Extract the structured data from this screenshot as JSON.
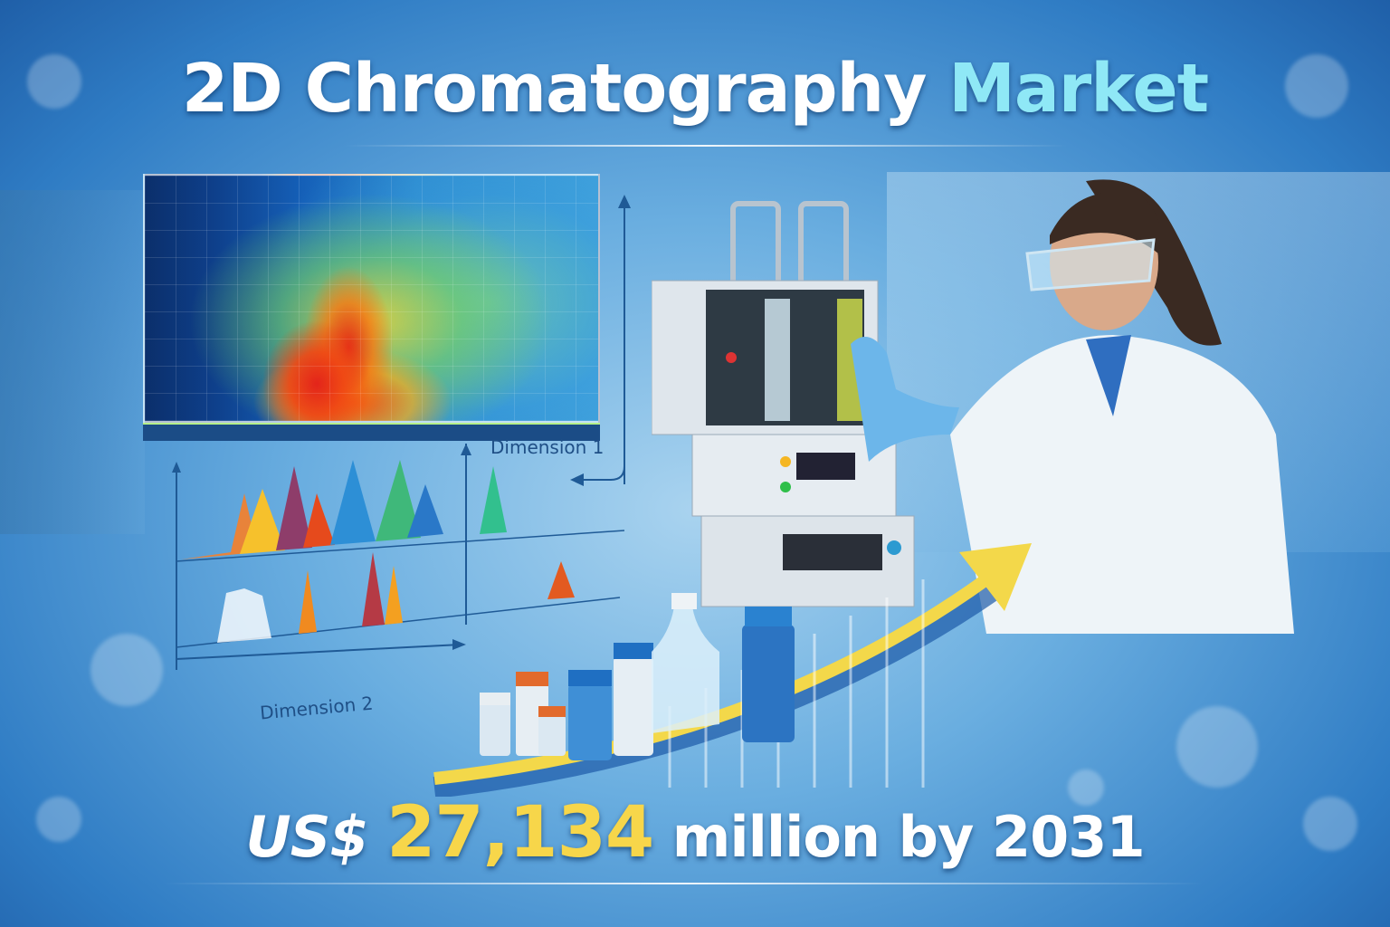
{
  "title": {
    "main": "2D Chromatography",
    "accent": "Market"
  },
  "labels": {
    "dimension1": "Dimension 1",
    "dimension2": "Dimension 2"
  },
  "headline": {
    "currency": "US$",
    "value": "27,134",
    "unit": "million by 2031"
  },
  "colors": {
    "title": "#ffffff",
    "title_accent": "#8fe8f6",
    "value": "#f7d64a",
    "background": "#3b86cc"
  }
}
